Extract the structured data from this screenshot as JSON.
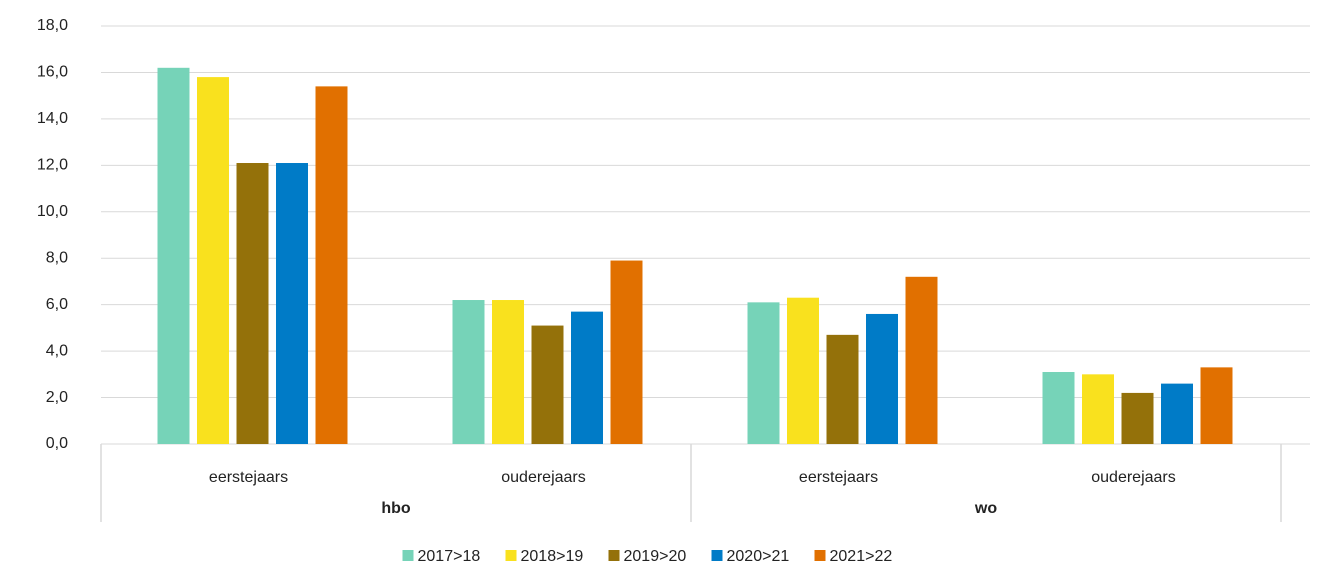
{
  "chart_data": {
    "type": "bar",
    "categories": [
      "eerstejaars",
      "ouderejaars",
      "eerstejaars",
      "ouderejaars"
    ],
    "groups": [
      "hbo",
      "wo"
    ],
    "series": [
      {
        "name": "2017>18",
        "color": "#76d3b8",
        "values": [
          16.2,
          6.2,
          6.1,
          3.1
        ]
      },
      {
        "name": "2018>19",
        "color": "#f9e11e",
        "values": [
          15.8,
          6.2,
          6.3,
          3.0
        ]
      },
      {
        "name": "2019>20",
        "color": "#94710a",
        "values": [
          12.1,
          5.1,
          4.7,
          2.2
        ]
      },
      {
        "name": "2020>21",
        "color": "#007bc7",
        "values": [
          12.1,
          5.7,
          5.6,
          2.6
        ]
      },
      {
        "name": "2021>22",
        "color": "#e17000",
        "values": [
          15.4,
          7.9,
          7.2,
          3.3
        ]
      }
    ],
    "ylim": [
      0,
      18
    ],
    "yticks": [
      {
        "value": 0,
        "label": "0,0"
      },
      {
        "value": 2,
        "label": "2,0"
      },
      {
        "value": 4,
        "label": "4,0"
      },
      {
        "value": 6,
        "label": "6,0"
      },
      {
        "value": 8,
        "label": "8,0"
      },
      {
        "value": 10,
        "label": "10,0"
      },
      {
        "value": 12,
        "label": "12,0"
      },
      {
        "value": 14,
        "label": "14,0"
      },
      {
        "value": 16,
        "label": "16,0"
      },
      {
        "value": 18,
        "label": "18,0"
      }
    ],
    "grid": true,
    "legend": "bottom"
  }
}
